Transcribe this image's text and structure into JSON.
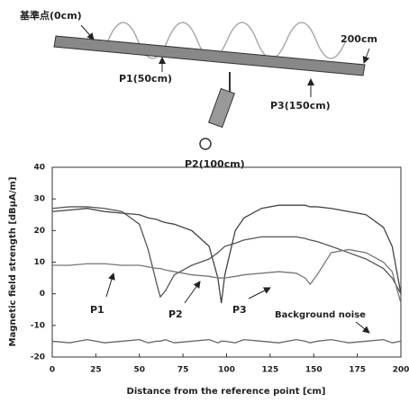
{
  "diagram": {
    "origin_label": "基準点(0cm)",
    "end_label": "200cm",
    "p1_label": "P1(50cm)",
    "p2_label": "P2(100cm)",
    "p3_label": "P3(150cm)"
  },
  "chart_data": {
    "type": "line",
    "xlabel": "Distance from the reference point [cm]",
    "ylabel": "Magnetic field strength [dBμA/m]",
    "x": [
      0,
      10,
      20,
      30,
      40,
      50,
      55,
      60,
      62,
      65,
      70,
      80,
      90,
      95,
      97,
      99,
      105,
      110,
      120,
      130,
      140,
      145,
      148,
      152,
      160,
      170,
      180,
      190,
      195,
      200
    ],
    "series": [
      {
        "color": "#555555",
        "values": [
          27,
          27.5,
          27.5,
          27,
          26,
          22,
          14,
          3,
          -1,
          1,
          6,
          9,
          11,
          13,
          14,
          15,
          16,
          17,
          18,
          18,
          18,
          17.5,
          17,
          16.5,
          15,
          13,
          11,
          8,
          5,
          0
        ]
      },
      {
        "color": "#444444",
        "values": [
          26,
          26.5,
          27,
          26,
          25.5,
          25,
          24,
          23.5,
          23,
          22.5,
          22,
          20,
          15,
          5,
          -3,
          6,
          20,
          24,
          27,
          28,
          28,
          28,
          27.5,
          27.5,
          27,
          26,
          25,
          21,
          15,
          0
        ]
      },
      {
        "color": "#777777",
        "values": [
          9,
          9,
          9.5,
          9.5,
          9,
          9,
          8.5,
          8,
          8,
          7.5,
          7,
          6,
          5.5,
          5,
          5,
          5,
          5.5,
          6,
          6.5,
          7,
          6.5,
          5,
          3,
          6,
          13,
          14,
          13,
          10,
          7,
          -3
        ]
      },
      {
        "color": "#666666",
        "values": [
          -15,
          -15.5,
          -14.5,
          -15.5,
          -15,
          -14.5,
          -15.5,
          -15,
          -15,
          -14.5,
          -15.5,
          -15,
          -14.5,
          -15.5,
          -15,
          -15,
          -15.5,
          -14.5,
          -15,
          -15.5,
          -14.5,
          -15,
          -15.5,
          -15,
          -14.5,
          -15.5,
          -15,
          -14.5,
          -15.5,
          -15
        ]
      }
    ],
    "annotations": [
      "P1",
      "P2",
      "P3",
      "Background noise"
    ],
    "xlim": [
      0,
      200
    ],
    "xticks": [
      0,
      25,
      50,
      75,
      100,
      125,
      150,
      175,
      200
    ],
    "ylim": [
      -20,
      40
    ],
    "yticks": [
      -20,
      -10,
      0,
      10,
      20,
      30,
      40
    ],
    "grid": false
  }
}
